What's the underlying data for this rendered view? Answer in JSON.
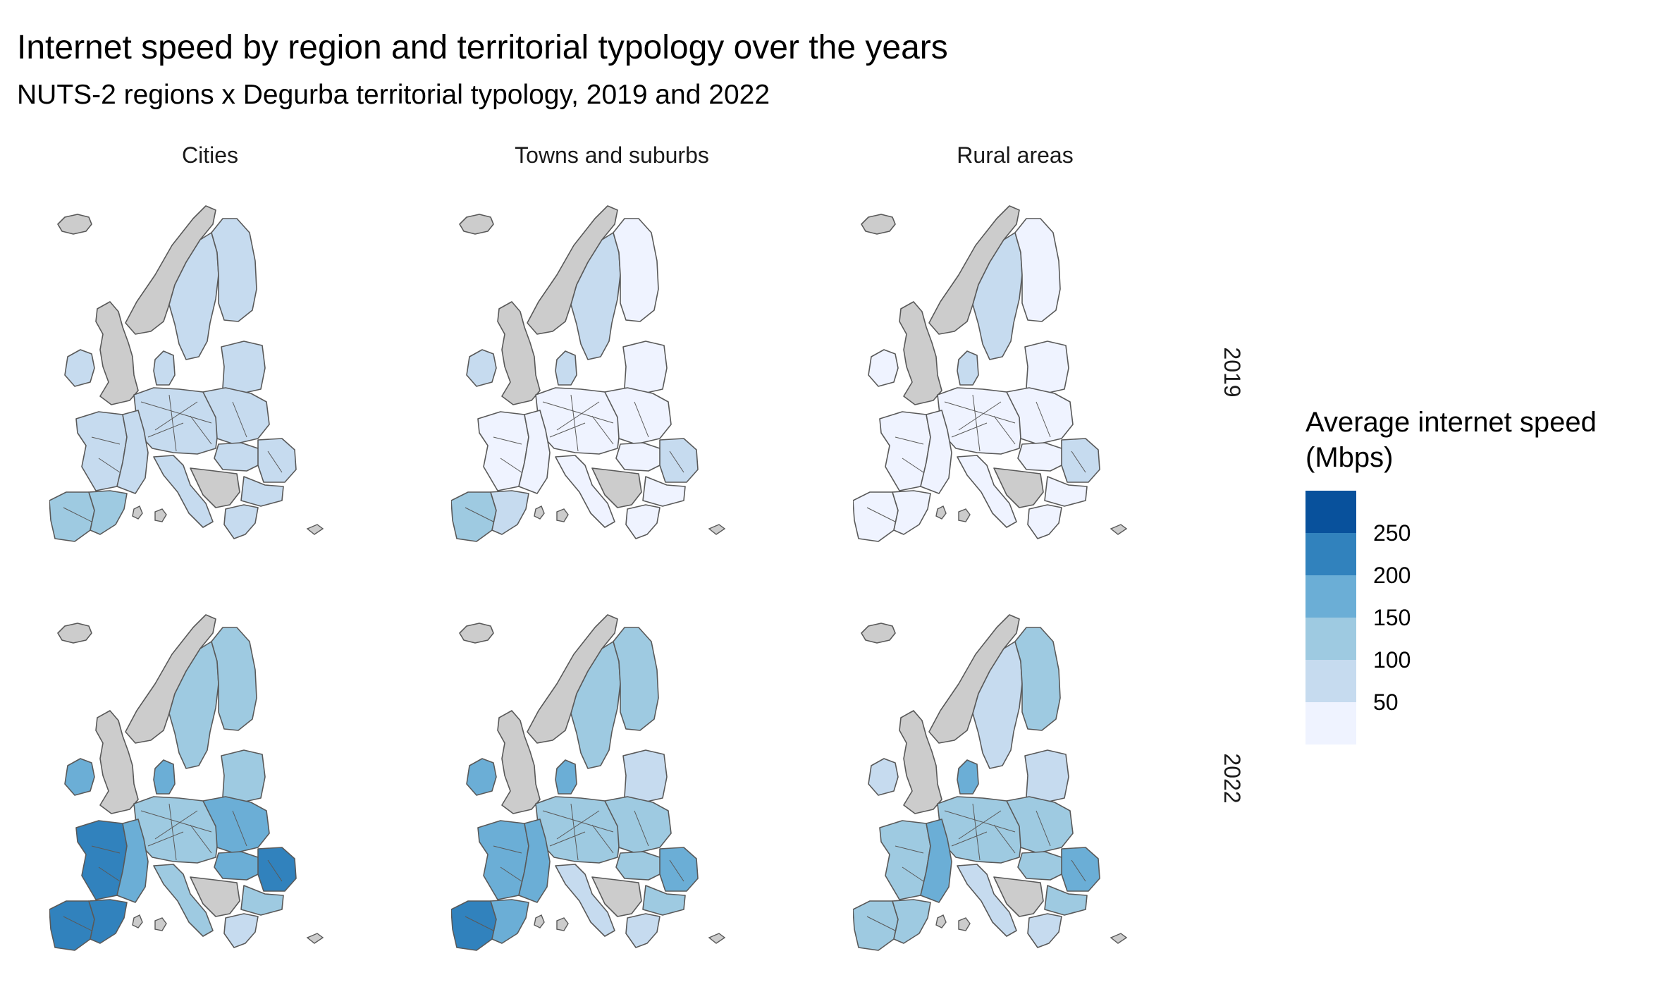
{
  "title": "Internet speed by region and territorial typology over the years",
  "subtitle": "NUTS-2 regions x Degurba territorial typology, 2019 and 2022",
  "columns": [
    "Cities",
    "Towns and suburbs",
    "Rural areas"
  ],
  "rows": [
    "2019",
    "2022"
  ],
  "legend": {
    "title_line1": "Average internet speed",
    "title_line2": "(Mbps)",
    "ticks": [
      "250",
      "200",
      "150",
      "100",
      "50"
    ],
    "classes": [
      {
        "range": "> 250",
        "color": "#08519c"
      },
      {
        "range": "200–250",
        "color": "#3182bd"
      },
      {
        "range": "150–200",
        "color": "#6baed6"
      },
      {
        "range": "100–150",
        "color": "#9ecae1"
      },
      {
        "range": "50–100",
        "color": "#c6dbef"
      },
      {
        "range": "< 50",
        "color": "#eff3ff"
      }
    ]
  },
  "colors": {
    "no_data": "#cccccc",
    "border": "#595959"
  },
  "panels": [
    {
      "typology": "Cities",
      "year": "2019",
      "regions": {
        "iceland": "no_data",
        "uk": "no_data",
        "ireland": "50–100",
        "norway": "no_data",
        "sweden": "50–100",
        "finland": "50–100",
        "baltics": "50–100",
        "denmark": "50–100",
        "central": "50–100",
        "poland": "50–100",
        "france_west": "50–100",
        "france_east": "50–100",
        "iberia_west": "100–150",
        "iberia_east": "100–150",
        "italy": "50–100",
        "balkans": "no_data",
        "romania": "50–100",
        "hungary": "50–100",
        "greece": "50–100",
        "bulgaria": "50–100"
      }
    },
    {
      "typology": "Towns and suburbs",
      "year": "2019",
      "regions": {
        "iceland": "no_data",
        "uk": "no_data",
        "ireland": "50–100",
        "norway": "no_data",
        "sweden": "50–100",
        "finland": "< 50",
        "baltics": "< 50",
        "denmark": "50–100",
        "central": "< 50",
        "poland": "< 50",
        "france_west": "< 50",
        "france_east": "< 50",
        "iberia_west": "100–150",
        "iberia_east": "50–100",
        "italy": "< 50",
        "balkans": "no_data",
        "romania": "50–100",
        "hungary": "< 50",
        "greece": "< 50",
        "bulgaria": "< 50"
      }
    },
    {
      "typology": "Rural areas",
      "year": "2019",
      "regions": {
        "iceland": "no_data",
        "uk": "no_data",
        "ireland": "< 50",
        "norway": "no_data",
        "sweden": "50–100",
        "finland": "< 50",
        "baltics": "< 50",
        "denmark": "50–100",
        "central": "< 50",
        "poland": "< 50",
        "france_west": "< 50",
        "france_east": "< 50",
        "iberia_west": "< 50",
        "iberia_east": "< 50",
        "italy": "< 50",
        "balkans": "no_data",
        "romania": "50–100",
        "hungary": "< 50",
        "greece": "< 50",
        "bulgaria": "< 50"
      }
    },
    {
      "typology": "Cities",
      "year": "2022",
      "regions": {
        "iceland": "no_data",
        "uk": "no_data",
        "ireland": "150–200",
        "norway": "no_data",
        "sweden": "100–150",
        "finland": "100–150",
        "baltics": "100–150",
        "denmark": "150–200",
        "central": "100–150",
        "poland": "150–200",
        "france_west": "200–250",
        "france_east": "150–200",
        "iberia_west": "200–250",
        "iberia_east": "200–250",
        "italy": "100–150",
        "balkans": "no_data",
        "romania": "200–250",
        "hungary": "150–200",
        "greece": "50–100",
        "bulgaria": "100–150"
      }
    },
    {
      "typology": "Towns and suburbs",
      "year": "2022",
      "regions": {
        "iceland": "no_data",
        "uk": "no_data",
        "ireland": "150–200",
        "norway": "no_data",
        "sweden": "100–150",
        "finland": "100–150",
        "baltics": "50–100",
        "denmark": "150–200",
        "central": "100–150",
        "poland": "100–150",
        "france_west": "150–200",
        "france_east": "150–200",
        "iberia_west": "200–250",
        "iberia_east": "150–200",
        "italy": "50–100",
        "balkans": "no_data",
        "romania": "150–200",
        "hungary": "100–150",
        "greece": "50–100",
        "bulgaria": "100–150"
      }
    },
    {
      "typology": "Rural areas",
      "year": "2022",
      "regions": {
        "iceland": "no_data",
        "uk": "no_data",
        "ireland": "50–100",
        "norway": "no_data",
        "sweden": "50–100",
        "finland": "100–150",
        "baltics": "50–100",
        "denmark": "150–200",
        "central": "100–150",
        "poland": "100–150",
        "france_west": "100–150",
        "france_east": "150–200",
        "iberia_west": "100–150",
        "iberia_east": "100–150",
        "italy": "50–100",
        "balkans": "no_data",
        "romania": "150–200",
        "hungary": "100–150",
        "greece": "50–100",
        "bulgaria": "100–150"
      }
    }
  ]
}
